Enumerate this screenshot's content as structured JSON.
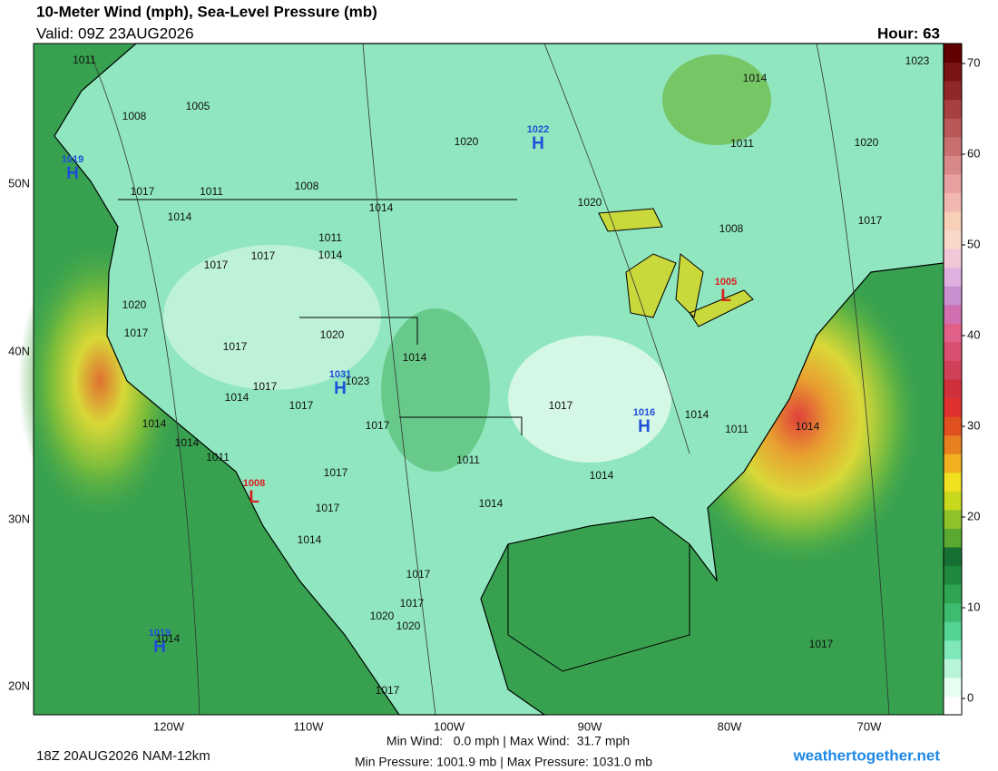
{
  "header": {
    "title": "10-Meter Wind (mph), Sea-Level Pressure (mb)",
    "valid": "Valid: 09Z 23AUG2026",
    "hour": "Hour: 63"
  },
  "map": {
    "lat_labels": [
      "50N",
      "40N",
      "30N",
      "20N"
    ],
    "lon_labels": [
      "120W",
      "110W",
      "100W",
      "90W",
      "80W",
      "70W"
    ],
    "centers": [
      {
        "symbol": "H",
        "value": 1022
      },
      {
        "symbol": "H",
        "value": 1019
      },
      {
        "symbol": "H",
        "value": 1031
      },
      {
        "symbol": "H",
        "value": 1016
      },
      {
        "symbol": "H",
        "value": 1019
      },
      {
        "symbol": "L",
        "value": 1005
      },
      {
        "symbol": "L",
        "value": 1008
      }
    ],
    "isobar_labels": [
      1011,
      1008,
      1005,
      1020,
      1023,
      1014,
      1011,
      1020,
      1017,
      1011,
      1008,
      1014,
      1014,
      1020,
      1008,
      1017,
      1011,
      1014,
      1017,
      1017,
      1020,
      1017,
      1020,
      1017,
      1014,
      1017,
      1023,
      1014,
      1017,
      1017,
      1014,
      1014,
      1017,
      1011,
      1014,
      1014,
      1011,
      1011,
      1017,
      1014,
      1014,
      1017,
      1014,
      1017,
      1017,
      1020,
      1020,
      1014,
      1017,
      1017
    ]
  },
  "colorbar": {
    "ticks": [
      0,
      10,
      20,
      30,
      40,
      50,
      60,
      70
    ]
  },
  "footer": {
    "run": "18Z 20AUG2026 NAM-12km",
    "wind": "Min Wind:   0.0 mph | Max Wind:  31.7 mph",
    "pressure": "Min Pressure: 1001.9 mb | Max Pressure: 1031.0 mb",
    "site": "weathertogether.net"
  }
}
